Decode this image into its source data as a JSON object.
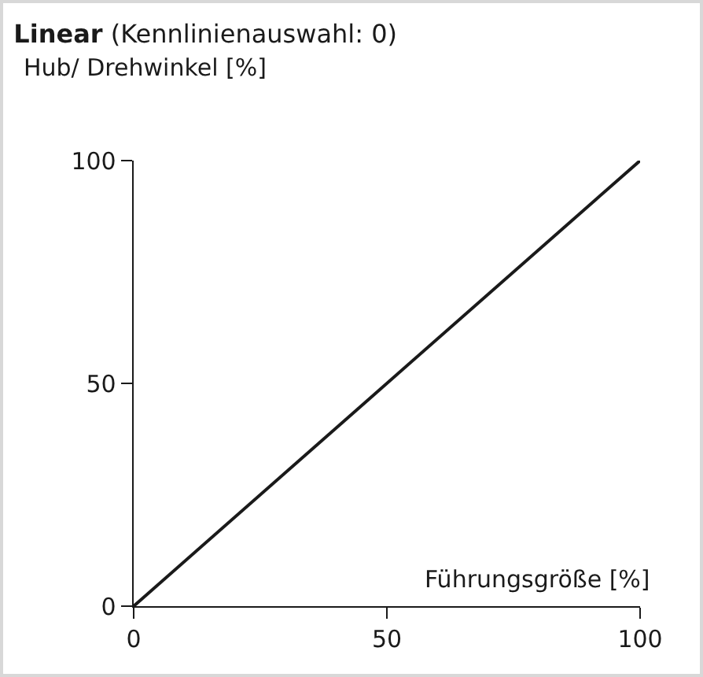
{
  "chart_data": {
    "type": "line",
    "title": "Linear",
    "subtitle": "(Kennlinienauswahl: 0)",
    "xlabel": "Führungsgröße [%]",
    "ylabel": "Hub/ Drehwinkel [%]",
    "x": [
      0,
      100
    ],
    "series": [
      {
        "color": "#1a1a1a",
        "values": [
          0,
          100
        ]
      }
    ],
    "xlim": [
      0,
      100
    ],
    "ylim": [
      0,
      100
    ],
    "xticks": [
      0,
      50,
      100
    ],
    "yticks": [
      0,
      50,
      100
    ],
    "grid": false,
    "marker": "none",
    "line_style": "solid"
  }
}
